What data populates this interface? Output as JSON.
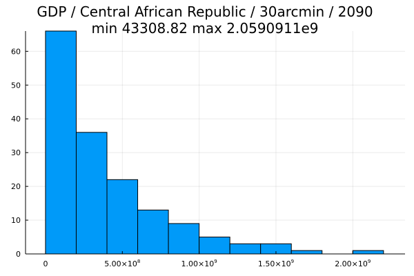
{
  "chart_data": {
    "type": "bar",
    "title": "GDP / Central African Republic / 30arcmin / 2090",
    "subtitle": "min 43308.82  max 2.0590911e9",
    "xlabel": "",
    "ylabel": "",
    "bar_color": "#009af9",
    "grid": true,
    "bins": [
      {
        "start": 0,
        "end": 200000000,
        "count": 66
      },
      {
        "start": 200000000,
        "end": 400000000,
        "count": 36
      },
      {
        "start": 400000000,
        "end": 600000000,
        "count": 22
      },
      {
        "start": 600000000,
        "end": 800000000,
        "count": 13
      },
      {
        "start": 800000000,
        "end": 1000000000,
        "count": 9
      },
      {
        "start": 1000000000,
        "end": 1200000000,
        "count": 5
      },
      {
        "start": 1200000000,
        "end": 1400000000,
        "count": 3
      },
      {
        "start": 1400000000,
        "end": 1600000000,
        "count": 3
      },
      {
        "start": 1600000000,
        "end": 1800000000,
        "count": 1
      },
      {
        "start": 1800000000,
        "end": 2000000000,
        "count": 0
      },
      {
        "start": 2000000000,
        "end": 2200000000,
        "count": 1
      }
    ],
    "xlim": [
      -130000000,
      2340000000
    ],
    "ylim": [
      0,
      66
    ],
    "x_ticks": [
      {
        "value": 0,
        "mantissa": "0",
        "exponent": ""
      },
      {
        "value": 500000000,
        "mantissa": "5.00×10",
        "exponent": "8"
      },
      {
        "value": 1000000000,
        "mantissa": "1.00×10",
        "exponent": "9"
      },
      {
        "value": 1500000000,
        "mantissa": "1.50×10",
        "exponent": "9"
      },
      {
        "value": 2000000000,
        "mantissa": "2.00×10",
        "exponent": "9"
      }
    ],
    "y_ticks": [
      {
        "value": 0,
        "label": "0"
      },
      {
        "value": 10,
        "label": "10"
      },
      {
        "value": 20,
        "label": "20"
      },
      {
        "value": 30,
        "label": "30"
      },
      {
        "value": 40,
        "label": "40"
      },
      {
        "value": 50,
        "label": "50"
      },
      {
        "value": 60,
        "label": "60"
      }
    ]
  }
}
